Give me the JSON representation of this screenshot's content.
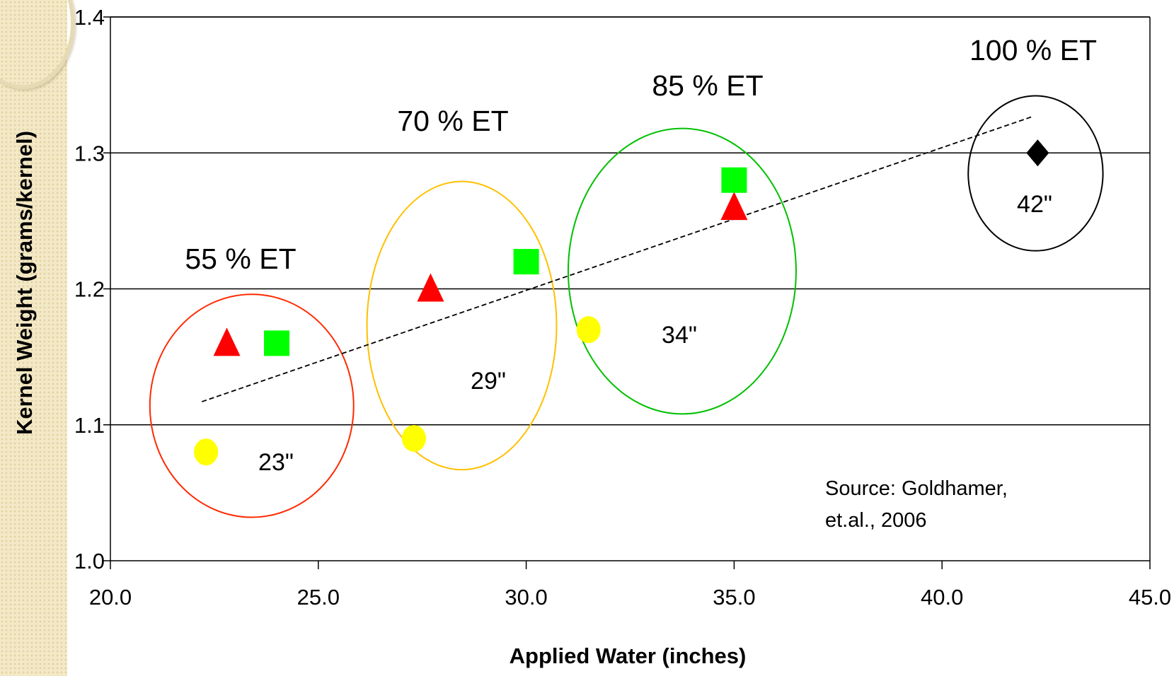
{
  "chart_data": {
    "type": "scatter",
    "title": "",
    "xlabel": "Applied Water (inches)",
    "ylabel": "Kernel Weight (grams/kernel)",
    "xlim": [
      20.0,
      45.0
    ],
    "ylim": [
      1.0,
      1.4
    ],
    "x_ticks": [
      "20.0",
      "25.0",
      "30.0",
      "35.0",
      "40.0",
      "45.0"
    ],
    "y_ticks": [
      "1.0",
      "1.1",
      "1.2",
      "1.3",
      "1.4"
    ],
    "grid": "horizontal",
    "series": [
      {
        "marker": "circle",
        "color": "#ffff00",
        "points": [
          {
            "x": 22.3,
            "y": 1.08
          },
          {
            "x": 27.3,
            "y": 1.09
          },
          {
            "x": 31.5,
            "y": 1.17
          }
        ]
      },
      {
        "marker": "triangle",
        "color": "#ff0000",
        "points": [
          {
            "x": 22.8,
            "y": 1.16
          },
          {
            "x": 27.7,
            "y": 1.2
          },
          {
            "x": 35.0,
            "y": 1.26
          }
        ]
      },
      {
        "marker": "square",
        "color": "#00ff00",
        "points": [
          {
            "x": 24.0,
            "y": 1.16
          },
          {
            "x": 30.0,
            "y": 1.22
          },
          {
            "x": 35.0,
            "y": 1.28
          }
        ]
      },
      {
        "marker": "diamond",
        "color": "#000000",
        "points": [
          {
            "x": 42.3,
            "y": 1.3
          }
        ]
      }
    ],
    "trendline": {
      "style": "dashed",
      "color": "#000000",
      "x": [
        22.2,
        42.2
      ],
      "y": [
        1.117,
        1.327
      ]
    },
    "groups": [
      {
        "label": "55 % ET",
        "water_label": "23\"",
        "ellipse_color": "#ff2a00",
        "cx": 23.4,
        "cy": 1.114,
        "rx": 2.45,
        "ry": 0.082
      },
      {
        "label": "70 % ET",
        "water_label": "29\"",
        "ellipse_color": "#ffc000",
        "cx": 28.45,
        "cy": 1.173,
        "rx": 2.28,
        "ry": 0.106
      },
      {
        "label": "85 % ET",
        "water_label": "34\"",
        "ellipse_color": "#00c000",
        "cx": 33.75,
        "cy": 1.213,
        "rx": 2.74,
        "ry": 0.105
      },
      {
        "label": "100 % ET",
        "water_label": "42\"",
        "ellipse_color": "#000000",
        "cx": 42.25,
        "cy": 1.285,
        "rx": 1.62,
        "ry": 0.057
      }
    ],
    "source_note": [
      "Source:  Goldhamer,",
      "et.al., 2006"
    ]
  }
}
